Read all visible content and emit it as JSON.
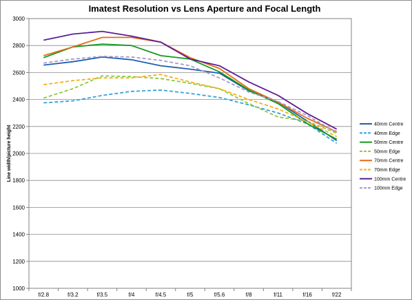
{
  "chart_data": {
    "type": "line",
    "title": "Imatest Resolution vs Lens Aperture and Focal Length",
    "xlabel": "",
    "ylabel": "Line width/picture height",
    "ylim": [
      1000,
      3000
    ],
    "yticks": [
      1000,
      1200,
      1400,
      1600,
      1800,
      2000,
      2200,
      2400,
      2600,
      2800,
      3000
    ],
    "categories": [
      "f/2.8",
      "f/3.2",
      "f/3.5",
      "f/4",
      "f/4.5",
      "f/5",
      "f/5.6",
      "f/8",
      "f/11",
      "f/16",
      "f/22"
    ],
    "grid": "horizontal",
    "legend_position": "right",
    "series": [
      {
        "name": "40mm Centre",
        "color": "#1f5fb0",
        "dash": "solid",
        "values": [
          2655,
          2680,
          2715,
          2695,
          2650,
          2625,
          2595,
          2465,
          2380,
          2240,
          2095
        ]
      },
      {
        "name": "40mm Edge",
        "color": "#2fa0e0",
        "dash": "dashed",
        "values": [
          2375,
          2390,
          2430,
          2460,
          2470,
          2445,
          2415,
          2360,
          2300,
          2220,
          2075
        ]
      },
      {
        "name": "50mm Centre",
        "color": "#119a1e",
        "dash": "solid",
        "values": [
          2710,
          2790,
          2810,
          2800,
          2725,
          2700,
          2605,
          2470,
          2370,
          2220,
          2105
        ]
      },
      {
        "name": "50mm Edge",
        "color": "#8cc83c",
        "dash": "dashed",
        "values": [
          2410,
          2480,
          2575,
          2570,
          2555,
          2520,
          2480,
          2370,
          2270,
          2240,
          2150
        ]
      },
      {
        "name": "70mm Centre",
        "color": "#e56a14",
        "dash": "solid",
        "values": [
          2725,
          2790,
          2860,
          2860,
          2825,
          2710,
          2630,
          2480,
          2380,
          2260,
          2160
        ]
      },
      {
        "name": "70mm Edge",
        "color": "#f5ae12",
        "dash": "dashed",
        "values": [
          2510,
          2540,
          2560,
          2560,
          2585,
          2530,
          2480,
          2400,
          2330,
          2235,
          2125
        ]
      },
      {
        "name": "100mm Centre",
        "color": "#5b1f92",
        "dash": "solid",
        "values": [
          2840,
          2885,
          2905,
          2870,
          2825,
          2700,
          2650,
          2530,
          2430,
          2295,
          2180
        ]
      },
      {
        "name": "100mm Edge",
        "color": "#a698cc",
        "dash": "dashed",
        "values": [
          2670,
          2700,
          2720,
          2715,
          2690,
          2650,
          2560,
          2455,
          2385,
          2280,
          2155
        ]
      }
    ]
  }
}
